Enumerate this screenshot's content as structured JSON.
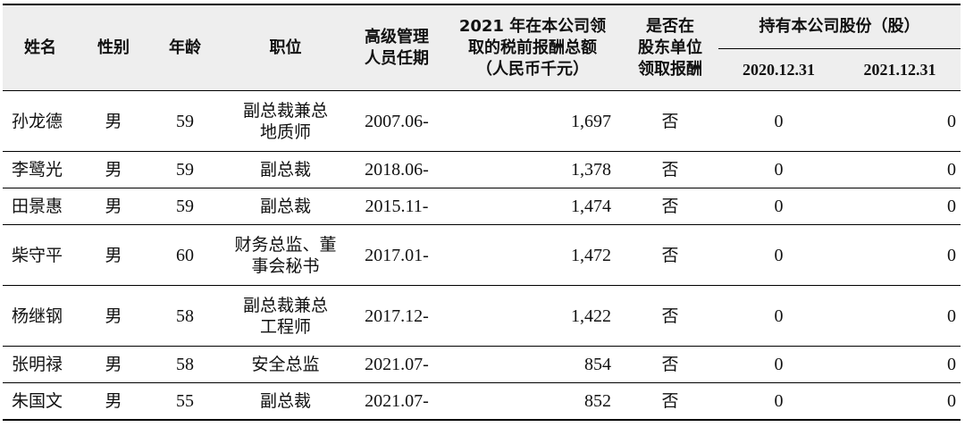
{
  "header": {
    "name": "姓名",
    "gender": "性别",
    "age": "年龄",
    "position": "职位",
    "tenure": "高级管理\n人员任期",
    "compensation": "2021 年在本公司领\n取的税前报酬总额\n（人民币千元）",
    "paid_by_shareholder": "是否在\n股东单位\n领取报酬",
    "shares_group": "持有本公司股份（股）",
    "shares_2020": "2020.12.31",
    "shares_2021": "2021.12.31"
  },
  "rows": [
    {
      "name": "孙龙德",
      "gender": "男",
      "age": "59",
      "position": "副总裁兼总\n地质师",
      "tenure": "2007.06-",
      "compensation": "1,697",
      "paid": "否",
      "s2020": "0",
      "s2021": "0"
    },
    {
      "name": "李鹭光",
      "gender": "男",
      "age": "59",
      "position": "副总裁",
      "tenure": "2018.06-",
      "compensation": "1,378",
      "paid": "否",
      "s2020": "0",
      "s2021": "0"
    },
    {
      "name": "田景惠",
      "gender": "男",
      "age": "59",
      "position": "副总裁",
      "tenure": "2015.11-",
      "compensation": "1,474",
      "paid": "否",
      "s2020": "0",
      "s2021": "0"
    },
    {
      "name": "柴守平",
      "gender": "男",
      "age": "60",
      "position": "财务总监、董\n事会秘书",
      "tenure": "2017.01-",
      "compensation": "1,472",
      "paid": "否",
      "s2020": "0",
      "s2021": "0"
    },
    {
      "name": "杨继钢",
      "gender": "男",
      "age": "58",
      "position": "副总裁兼总\n工程师",
      "tenure": "2017.12-",
      "compensation": "1,422",
      "paid": "否",
      "s2020": "0",
      "s2021": "0"
    },
    {
      "name": "张明禄",
      "gender": "男",
      "age": "58",
      "position": "安全总监",
      "tenure": "2021.07-",
      "compensation": "854",
      "paid": "否",
      "s2020": "0",
      "s2021": "0"
    },
    {
      "name": "朱国文",
      "gender": "男",
      "age": "55",
      "position": "副总裁",
      "tenure": "2021.07-",
      "compensation": "852",
      "paid": "否",
      "s2020": "0",
      "s2021": "0"
    }
  ]
}
